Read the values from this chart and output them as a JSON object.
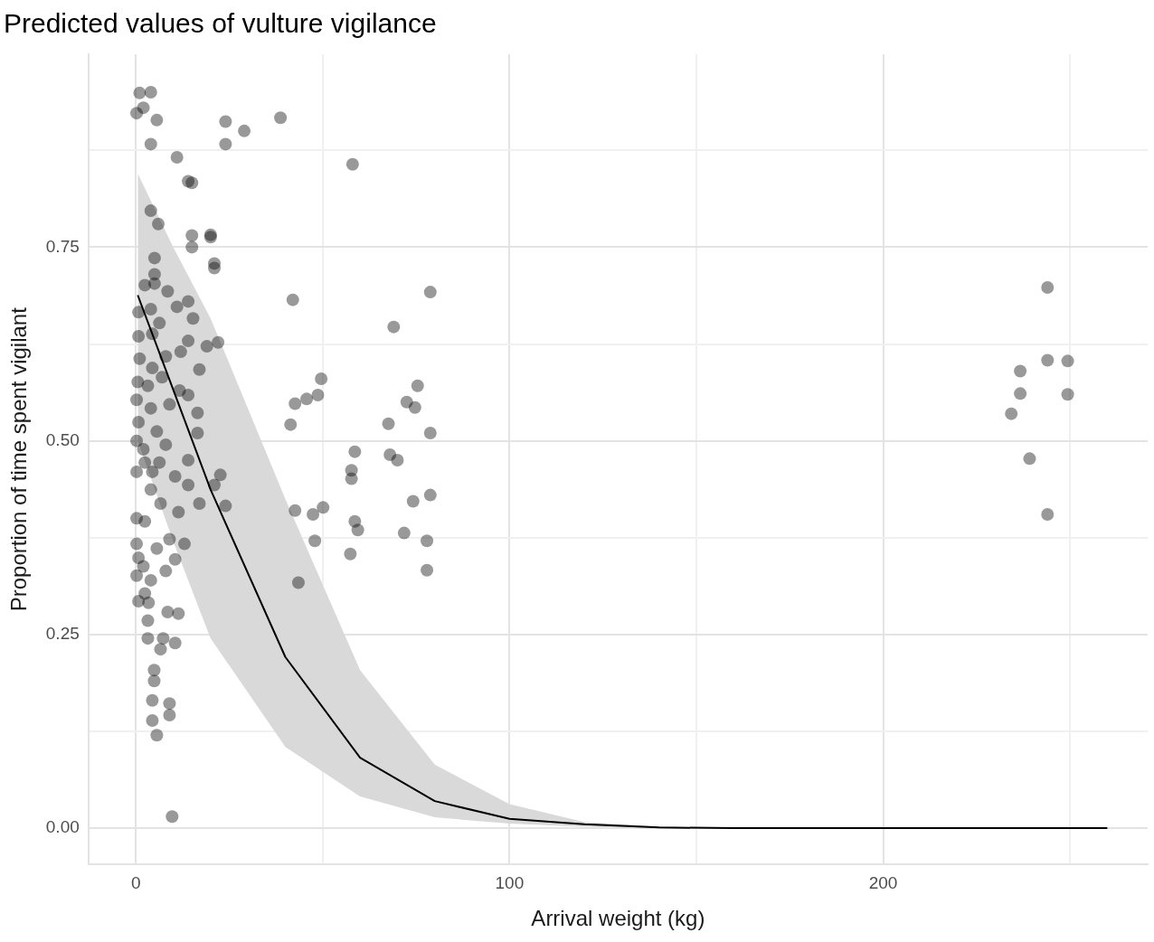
{
  "chart_data": {
    "type": "scatter",
    "title": "Predicted values of vulture vigilance",
    "xlabel": "Arrival weight (kg)",
    "ylabel": "Proportion of time spent vigilant",
    "xlim": [
      -12.7,
      270.8
    ],
    "ylim": [
      -0.047,
      0.999
    ],
    "xticks": [
      0,
      {
        "value": 50,
        "label": null
      },
      100,
      {
        "value": 150,
        "label": null
      },
      200,
      {
        "value": 250,
        "label": null
      }
    ],
    "yticks": [
      {
        "value": 0,
        "label": "0.00"
      },
      {
        "value": 0.125,
        "label": null
      },
      {
        "value": 0.25,
        "label": "0.25"
      },
      {
        "value": 0.375,
        "label": null
      },
      {
        "value": 0.5,
        "label": "0.50"
      },
      {
        "value": 0.625,
        "label": null
      },
      {
        "value": 0.75,
        "label": "0.75"
      },
      {
        "value": 0.875,
        "label": null
      }
    ],
    "grid": true,
    "legend": false,
    "series": [
      {
        "color": "#000000",
        "marker": "circle",
        "x": [
          1,
          4,
          0.2,
          2,
          5.6,
          4,
          11,
          14,
          15,
          24,
          24,
          29,
          38.7,
          58,
          4,
          6,
          15,
          15,
          20,
          20,
          21,
          21,
          42,
          78.8,
          244,
          5,
          5,
          2.4,
          5,
          8.5,
          11,
          14,
          0.7,
          4,
          15.3,
          6.3,
          69,
          0.7,
          4.4,
          14,
          22,
          19,
          12,
          1,
          8,
          17,
          4.4,
          0.5,
          3.2,
          7,
          11.7,
          14,
          0.2,
          4,
          9,
          16.5,
          0.7,
          5.6,
          16.5,
          0.2,
          2,
          8,
          2.4,
          6.3,
          14,
          0.2,
          4.4,
          10.5,
          22.6,
          4,
          14,
          21,
          6.6,
          17,
          11.4,
          24,
          42.6,
          45.7,
          48.7,
          49.6,
          41.4,
          75.4,
          72.5,
          74.7,
          67.6,
          78.8,
          58.6,
          68,
          70,
          57.7,
          57.7,
          78.8,
          74.2,
          42.6,
          47.4,
          50.1,
          58.6,
          59.4,
          71.8,
          47.9,
          77.9,
          57.4,
          77.9,
          43.5,
          0.2,
          2.4,
          0.2,
          0.7,
          2,
          0.2,
          4,
          8,
          10.5,
          13,
          9,
          5.6,
          2.4,
          3.4,
          0.7,
          3.2,
          8.5,
          11.4,
          3.2,
          7.3,
          10.5,
          6.6,
          4.9,
          4.9,
          4.4,
          9,
          9,
          4.4,
          5.6,
          9.7,
          234.3,
          236.7,
          236.7,
          239.2,
          244,
          244,
          249.4,
          249.4
        ],
        "values": [
          0.949,
          0.95,
          0.923,
          0.93,
          0.914,
          0.883,
          0.866,
          0.835,
          0.833,
          0.912,
          0.883,
          0.9,
          0.917,
          0.857,
          0.797,
          0.78,
          0.765,
          0.75,
          0.766,
          0.763,
          0.729,
          0.723,
          0.682,
          0.692,
          0.698,
          0.736,
          0.715,
          0.701,
          0.703,
          0.693,
          0.673,
          0.68,
          0.666,
          0.67,
          0.658,
          0.652,
          0.647,
          0.635,
          0.638,
          0.629,
          0.627,
          0.622,
          0.615,
          0.606,
          0.609,
          0.592,
          0.594,
          0.576,
          0.571,
          0.582,
          0.565,
          0.559,
          0.553,
          0.542,
          0.547,
          0.536,
          0.524,
          0.512,
          0.51,
          0.5,
          0.489,
          0.495,
          0.472,
          0.472,
          0.475,
          0.46,
          0.46,
          0.454,
          0.456,
          0.437,
          0.443,
          0.443,
          0.419,
          0.419,
          0.408,
          0.416,
          0.548,
          0.554,
          0.559,
          0.58,
          0.521,
          0.571,
          0.55,
          0.543,
          0.522,
          0.51,
          0.486,
          0.482,
          0.475,
          0.462,
          0.451,
          0.43,
          0.422,
          0.41,
          0.405,
          0.414,
          0.396,
          0.385,
          0.381,
          0.371,
          0.371,
          0.354,
          0.333,
          0.317,
          0.4,
          0.396,
          0.367,
          0.349,
          0.338,
          0.326,
          0.32,
          0.332,
          0.347,
          0.367,
          0.373,
          0.361,
          0.303,
          0.291,
          0.293,
          0.268,
          0.279,
          0.277,
          0.245,
          0.245,
          0.239,
          0.231,
          0.204,
          0.19,
          0.165,
          0.161,
          0.146,
          0.139,
          0.12,
          0.015,
          0.535,
          0.59,
          0.561,
          0.477,
          0.604,
          0.405,
          0.603,
          0.56
        ]
      },
      {
        "type": "line",
        "color": "#000000",
        "x": [
          0.5,
          10,
          20,
          40,
          60,
          80,
          100,
          120,
          140,
          160,
          180,
          200,
          220,
          240,
          260
        ],
        "values": [
          0.688,
          0.566,
          0.437,
          0.221,
          0.091,
          0.035,
          0.012,
          0.005,
          0.001,
          0,
          0,
          0,
          0,
          0,
          0
        ],
        "lower": [
          0.5,
          0.37,
          0.245,
          0.105,
          0.041,
          0.014,
          0.006,
          0.002,
          0,
          0,
          0,
          0,
          0,
          0,
          0
        ],
        "upper": [
          0.845,
          0.75,
          0.658,
          0.425,
          0.204,
          0.082,
          0.031,
          0.008,
          0.002,
          0,
          0,
          0,
          0,
          0,
          0
        ]
      }
    ]
  }
}
